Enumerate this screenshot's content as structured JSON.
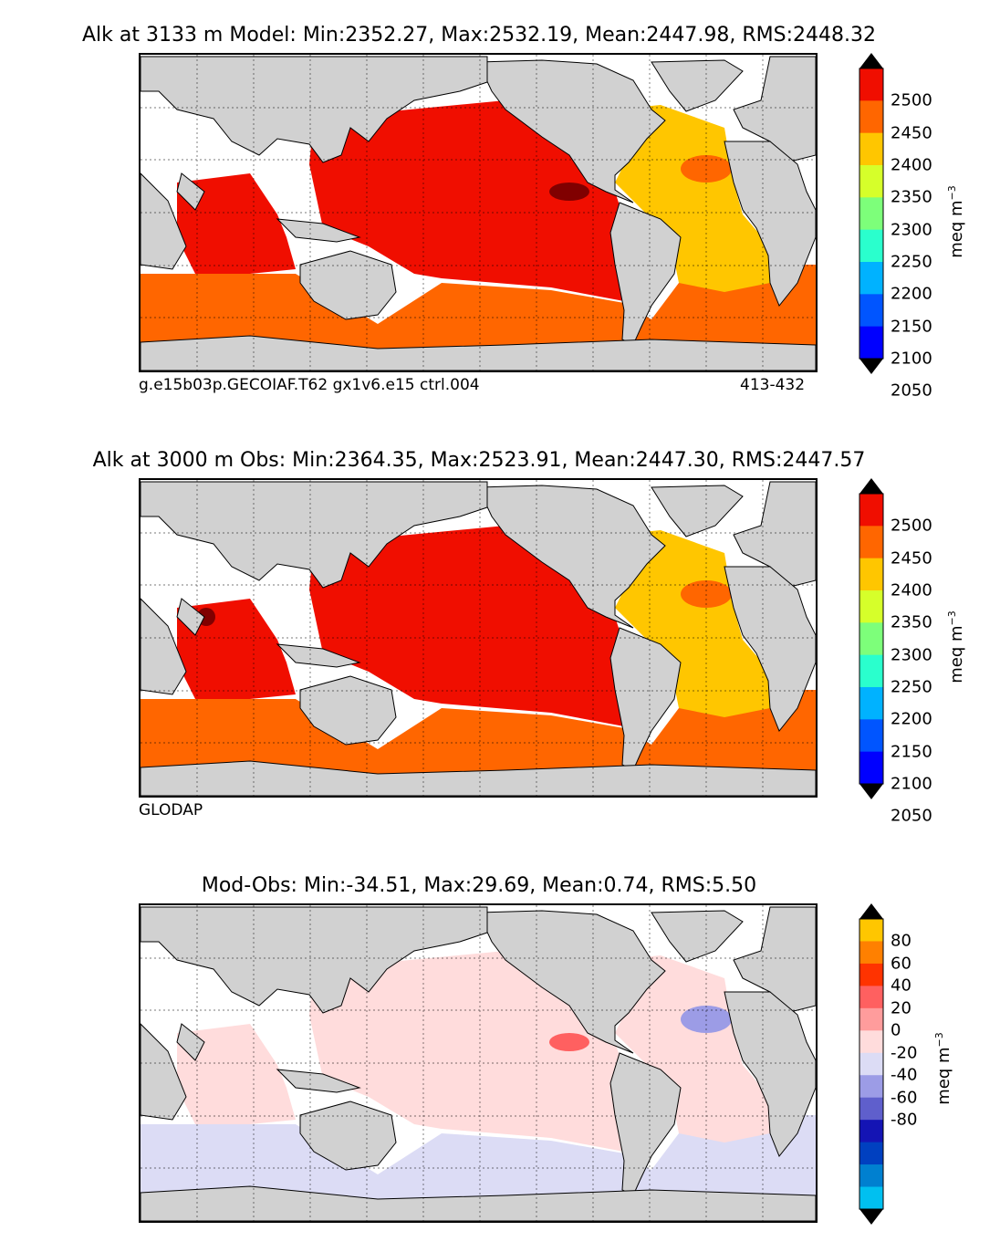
{
  "panels": [
    {
      "title": "Alk at 3133 m Model: Min:2352.27, Max:2532.19, Mean:2447.98, RMS:2448.32",
      "footer_left": "g.e15b03p.GECOIAF.T62 gx1v6.e15 ctrl.004",
      "footer_right": "413-432",
      "units": "meq m",
      "units_exp": "−3",
      "colorbar": {
        "ticks": [
          "2500",
          "2450",
          "2400",
          "2350",
          "2300",
          "2250",
          "2200",
          "2150",
          "2100",
          "2050"
        ],
        "colors": [
          "#800000",
          "#f00e00",
          "#ff6600",
          "#ffc600",
          "#d6ff2a",
          "#7dff7a",
          "#2affcd",
          "#00b2ff",
          "#0055ff",
          "#0000ff",
          "#00007f"
        ]
      },
      "fields": {
        "north_pacific": "#f00e00",
        "indian": "#f00e00",
        "southern": "#ff6600",
        "atlantic": "#ffc600",
        "hotspot": "#800000",
        "atlantic_patch": "#ff6600"
      }
    },
    {
      "title": "Alk at 3000 m Obs: Min:2364.35, Max:2523.91, Mean:2447.30, RMS:2447.57",
      "footer_left": "GLODAP",
      "footer_right": "",
      "units": "meq m",
      "units_exp": "−3",
      "colorbar": {
        "ticks": [
          "2500",
          "2450",
          "2400",
          "2350",
          "2300",
          "2250",
          "2200",
          "2150",
          "2100",
          "2050"
        ],
        "colors": [
          "#800000",
          "#f00e00",
          "#ff6600",
          "#ffc600",
          "#d6ff2a",
          "#7dff7a",
          "#2affcd",
          "#00b2ff",
          "#0055ff",
          "#0000ff",
          "#00007f"
        ]
      },
      "fields": {
        "north_pacific": "#f00e00",
        "indian": "#f00e00",
        "southern": "#ff6600",
        "atlantic": "#ffc600",
        "hotspot": "#800000",
        "atlantic_patch": "#ff6600"
      }
    },
    {
      "title": "Mod-Obs: Min:-34.51, Max:29.69, Mean:0.74, RMS:5.50",
      "footer_left": "",
      "footer_right": "",
      "units": "meq m",
      "units_exp": "−3",
      "colorbar": {
        "ticks": [
          "80",
          "60",
          "40",
          "20",
          "0",
          "-20",
          "-40",
          "-60",
          "-80"
        ],
        "colors": [
          "#ffff00",
          "#ffc600",
          "#ff8000",
          "#ff3300",
          "#ff6060",
          "#ff9c9c",
          "#ffdcdc",
          "#dcdcf5",
          "#9c9ce6",
          "#5f5fcc",
          "#1414b4",
          "#0040c0",
          "#0080d0",
          "#00c0f0",
          "#00ffff"
        ]
      },
      "fields": {
        "north_pacific": "#ffdcdc",
        "indian": "#ffdcdc",
        "southern": "#dcdcf5",
        "atlantic": "#ffdcdc",
        "hotspot": "#ff6060",
        "atlantic_patch": "#9c9ce6"
      }
    }
  ]
}
